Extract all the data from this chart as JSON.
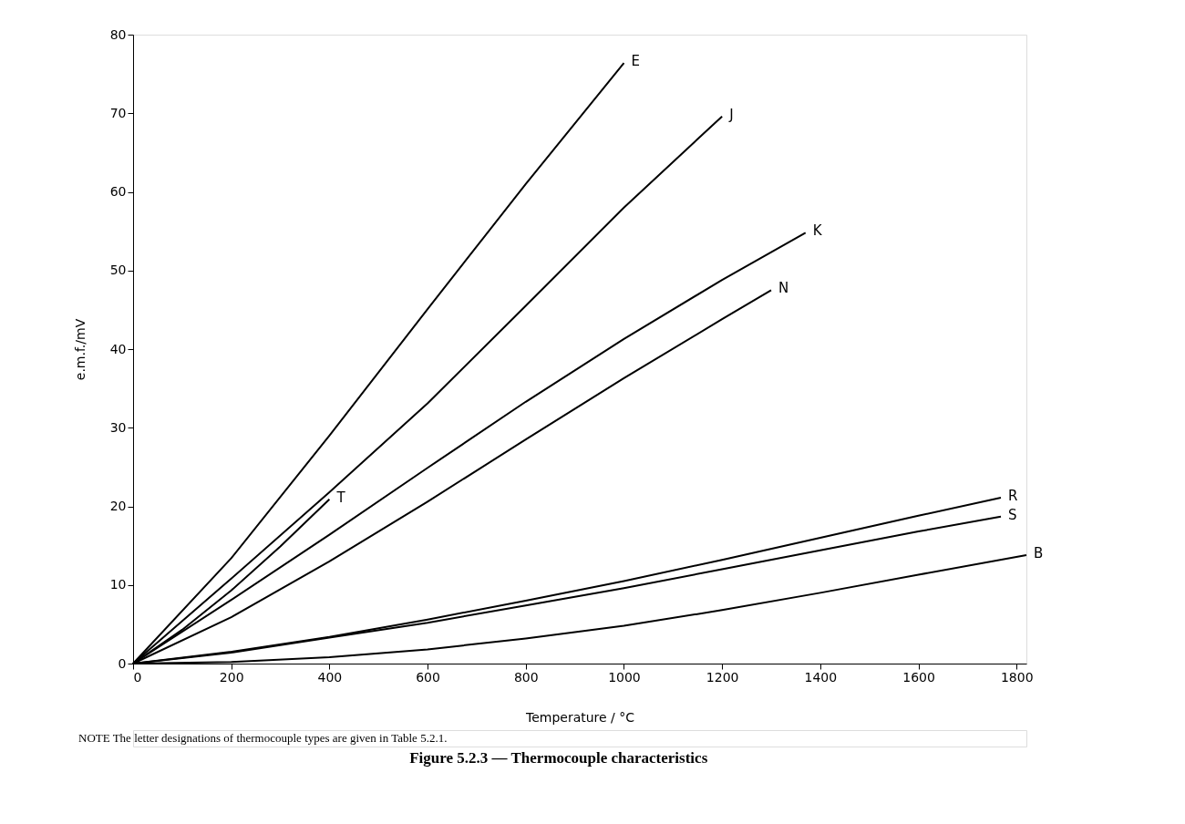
{
  "chart_data": {
    "type": "line",
    "title": "Figure 5.2.3 — Thermocouple characteristics",
    "xlabel": "Temperature / °C",
    "ylabel": "e.m.f./mV",
    "annotations": [
      "NOTE    The letter designations of thermocouple types are given in Table 5.2.1."
    ],
    "xlim": [
      0,
      1820
    ],
    "xticks": [
      0,
      200,
      400,
      600,
      800,
      1000,
      1200,
      1400,
      1600,
      1800
    ],
    "ylim": [
      0,
      80
    ],
    "yticks": [
      0,
      10,
      20,
      30,
      40,
      50,
      60,
      70,
      80
    ],
    "grid": false,
    "legend": false,
    "marker": "none",
    "line_style": "solid",
    "series": [
      {
        "name": "E",
        "color": "#000000",
        "x": [
          0,
          200,
          400,
          600,
          800,
          1000
        ],
        "values": [
          0,
          13.4,
          29.0,
          45.1,
          61.0,
          76.4
        ]
      },
      {
        "name": "J",
        "color": "#000000",
        "x": [
          0,
          200,
          400,
          600,
          800,
          1000,
          1200
        ],
        "values": [
          0,
          10.8,
          21.8,
          33.1,
          45.5,
          58.0,
          69.6
        ]
      },
      {
        "name": "K",
        "color": "#000000",
        "x": [
          0,
          200,
          400,
          600,
          800,
          1000,
          1200,
          1370
        ],
        "values": [
          0,
          8.1,
          16.4,
          24.9,
          33.3,
          41.3,
          48.8,
          54.8
        ]
      },
      {
        "name": "N",
        "color": "#000000",
        "x": [
          0,
          200,
          400,
          600,
          800,
          1000,
          1200,
          1300
        ],
        "values": [
          0,
          5.9,
          13.0,
          20.6,
          28.5,
          36.3,
          43.8,
          47.5
        ]
      },
      {
        "name": "T",
        "color": "#000000",
        "x": [
          0,
          100,
          200,
          300,
          400
        ],
        "values": [
          0,
          4.3,
          9.3,
          14.9,
          20.9
        ]
      },
      {
        "name": "R",
        "color": "#000000",
        "x": [
          0,
          200,
          400,
          600,
          800,
          1000,
          1200,
          1400,
          1600,
          1768
        ],
        "values": [
          0,
          1.5,
          3.4,
          5.6,
          8.0,
          10.5,
          13.2,
          16.0,
          18.8,
          21.1
        ]
      },
      {
        "name": "S",
        "color": "#000000",
        "x": [
          0,
          200,
          400,
          600,
          800,
          1000,
          1200,
          1400,
          1600,
          1768
        ],
        "values": [
          0,
          1.4,
          3.3,
          5.2,
          7.4,
          9.6,
          12.0,
          14.4,
          16.8,
          18.7
        ]
      },
      {
        "name": "B",
        "color": "#000000",
        "x": [
          0,
          200,
          400,
          600,
          800,
          1000,
          1200,
          1400,
          1600,
          1820
        ],
        "values": [
          0,
          0.2,
          0.8,
          1.8,
          3.2,
          4.8,
          6.8,
          9.0,
          11.3,
          13.8
        ]
      }
    ]
  }
}
